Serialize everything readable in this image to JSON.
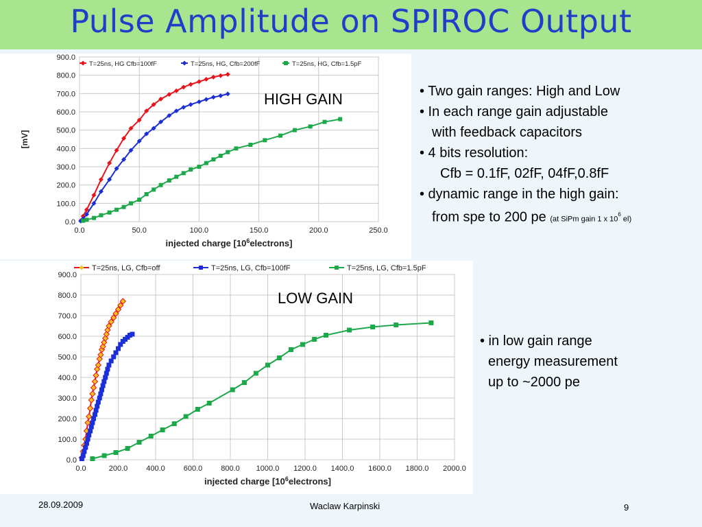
{
  "slide": {
    "title": "Pulse Amplitude on SPIROC Output",
    "date": "28.09.2009",
    "author": "Waclaw Karpinski",
    "page": "9"
  },
  "labels": {
    "high_gain": "HIGH GAIN",
    "low_gain": "LOW GAIN"
  },
  "notes_high": {
    "line1": "• Two gain ranges: High and Low",
    "line2": "•  In each range gain adjustable",
    "line3": "with feedback capacitors",
    "line4": "• 4 bits resolution:",
    "line5": "Cfb = 0.1fF, 02fF, 04fF,0.8fF",
    "line6": "• dynamic range in the high gain:",
    "line7": "from spe to 200 pe",
    "line7_small": "(at SiPm gain 1 x 10",
    "line7_sup": "6",
    "line7_end": " el)"
  },
  "notes_low": {
    "line1": "• in low gain range",
    "line2": "energy measurement",
    "line3": "up to ~2000 pe"
  },
  "chart_data": [
    {
      "type": "line",
      "ylabel": "[mV]",
      "xlabel": "injected charge [10",
      "xlabel_sup": "6",
      "xlabel_end": "electrons]",
      "xlim": [
        0,
        250
      ],
      "ylim": [
        0,
        900
      ],
      "xticks": [
        "0.0",
        "50.0",
        "100.0",
        "150.0",
        "200.0",
        "250.0"
      ],
      "yticks": [
        "0.0",
        "100.0",
        "200.0",
        "300.0",
        "400.0",
        "500.0",
        "600.0",
        "700.0",
        "800.0",
        "900.0"
      ],
      "grid": true,
      "legend_position": "top",
      "series": [
        {
          "name": "T=25ns, HG Cfb=100fF",
          "color": "#e8141c",
          "marker": "diamond",
          "x": [
            1,
            3,
            6,
            12,
            18,
            25,
            31,
            37,
            43,
            50,
            56,
            62,
            68,
            75,
            81,
            87,
            93,
            100,
            106,
            112,
            118,
            124
          ],
          "y": [
            5,
            30,
            65,
            145,
            230,
            320,
            390,
            455,
            510,
            555,
            605,
            640,
            670,
            695,
            715,
            735,
            750,
            765,
            778,
            790,
            798,
            805
          ]
        },
        {
          "name": "T=25ns, HG, Cfb=200fF",
          "color": "#1c2fd6",
          "marker": "diamond",
          "x": [
            1,
            3,
            6,
            12,
            18,
            25,
            31,
            37,
            43,
            50,
            56,
            62,
            68,
            75,
            81,
            87,
            93,
            100,
            106,
            112,
            118,
            124
          ],
          "y": [
            3,
            15,
            40,
            100,
            165,
            230,
            290,
            340,
            390,
            440,
            480,
            510,
            545,
            580,
            605,
            625,
            640,
            655,
            668,
            680,
            688,
            698
          ]
        },
        {
          "name": "T=25ns, HG, Cfb=1.5pF",
          "color": "#1da84a",
          "marker": "square",
          "x": [
            3,
            6,
            12,
            18,
            25,
            31,
            37,
            43,
            50,
            56,
            62,
            68,
            75,
            81,
            87,
            93,
            100,
            106,
            112,
            118,
            124,
            131,
            143,
            155,
            168,
            180,
            193,
            205,
            218
          ],
          "y": [
            5,
            10,
            20,
            35,
            50,
            65,
            80,
            100,
            120,
            150,
            175,
            200,
            225,
            245,
            265,
            285,
            300,
            320,
            340,
            360,
            380,
            400,
            420,
            445,
            470,
            500,
            520,
            545,
            560
          ]
        }
      ]
    },
    {
      "type": "line",
      "ylabel": "",
      "xlabel": "injected charge [10",
      "xlabel_sup": "6",
      "xlabel_end": "electrons]",
      "xlim": [
        0,
        2000
      ],
      "ylim": [
        0,
        900
      ],
      "xticks": [
        "0.0",
        "200.0",
        "400.0",
        "600.0",
        "800.0",
        "1000.0",
        "1200.0",
        "1400.0",
        "1600.0",
        "1800.0",
        "2000.0"
      ],
      "yticks": [
        "0.0",
        "100.0",
        "200.0",
        "300.0",
        "400.0",
        "500.0",
        "600.0",
        "700.0",
        "800.0",
        "900.0"
      ],
      "grid": true,
      "legend_position": "top",
      "series": [
        {
          "name": "T=25ns, LG, Cfb=off",
          "color": "#e8141c",
          "marker_fill": "#f2c21d",
          "marker": "diamond",
          "x": [
            5,
            12,
            18,
            25,
            31,
            37,
            43,
            50,
            56,
            62,
            68,
            75,
            81,
            87,
            93,
            100,
            106,
            112,
            118,
            124,
            131,
            137,
            143,
            150,
            162,
            175,
            187,
            200,
            212,
            225
          ],
          "y": [
            10,
            40,
            70,
            100,
            140,
            180,
            210,
            250,
            290,
            320,
            350,
            380,
            410,
            440,
            460,
            490,
            510,
            535,
            550,
            570,
            590,
            610,
            630,
            650,
            670,
            690,
            710,
            730,
            750,
            770
          ]
        },
        {
          "name": "T=25ns, LG, Cfb=100fF",
          "color": "#1c2fd6",
          "marker": "square",
          "x": [
            5,
            12,
            18,
            25,
            31,
            37,
            43,
            50,
            56,
            62,
            68,
            75,
            81,
            87,
            93,
            100,
            106,
            112,
            118,
            124,
            131,
            137,
            143,
            150,
            162,
            175,
            187,
            200,
            212,
            225,
            237,
            250,
            262,
            275
          ],
          "y": [
            5,
            20,
            40,
            60,
            80,
            100,
            120,
            140,
            160,
            180,
            200,
            220,
            240,
            260,
            280,
            300,
            320,
            340,
            360,
            380,
            400,
            420,
            440,
            460,
            480,
            500,
            520,
            540,
            560,
            575,
            585,
            595,
            605,
            610
          ]
        },
        {
          "name": "T=25ns, LG, Cfb=1.5pF",
          "color": "#1da84a",
          "marker": "square",
          "x": [
            62,
            125,
            187,
            250,
            312,
            375,
            437,
            500,
            562,
            625,
            687,
            812,
            875,
            937,
            1000,
            1062,
            1125,
            1187,
            1250,
            1312,
            1437,
            1562,
            1687,
            1875
          ],
          "y": [
            5,
            20,
            35,
            55,
            85,
            115,
            145,
            175,
            210,
            245,
            275,
            340,
            375,
            420,
            460,
            495,
            535,
            560,
            585,
            605,
            630,
            645,
            655,
            665
          ]
        }
      ]
    }
  ]
}
